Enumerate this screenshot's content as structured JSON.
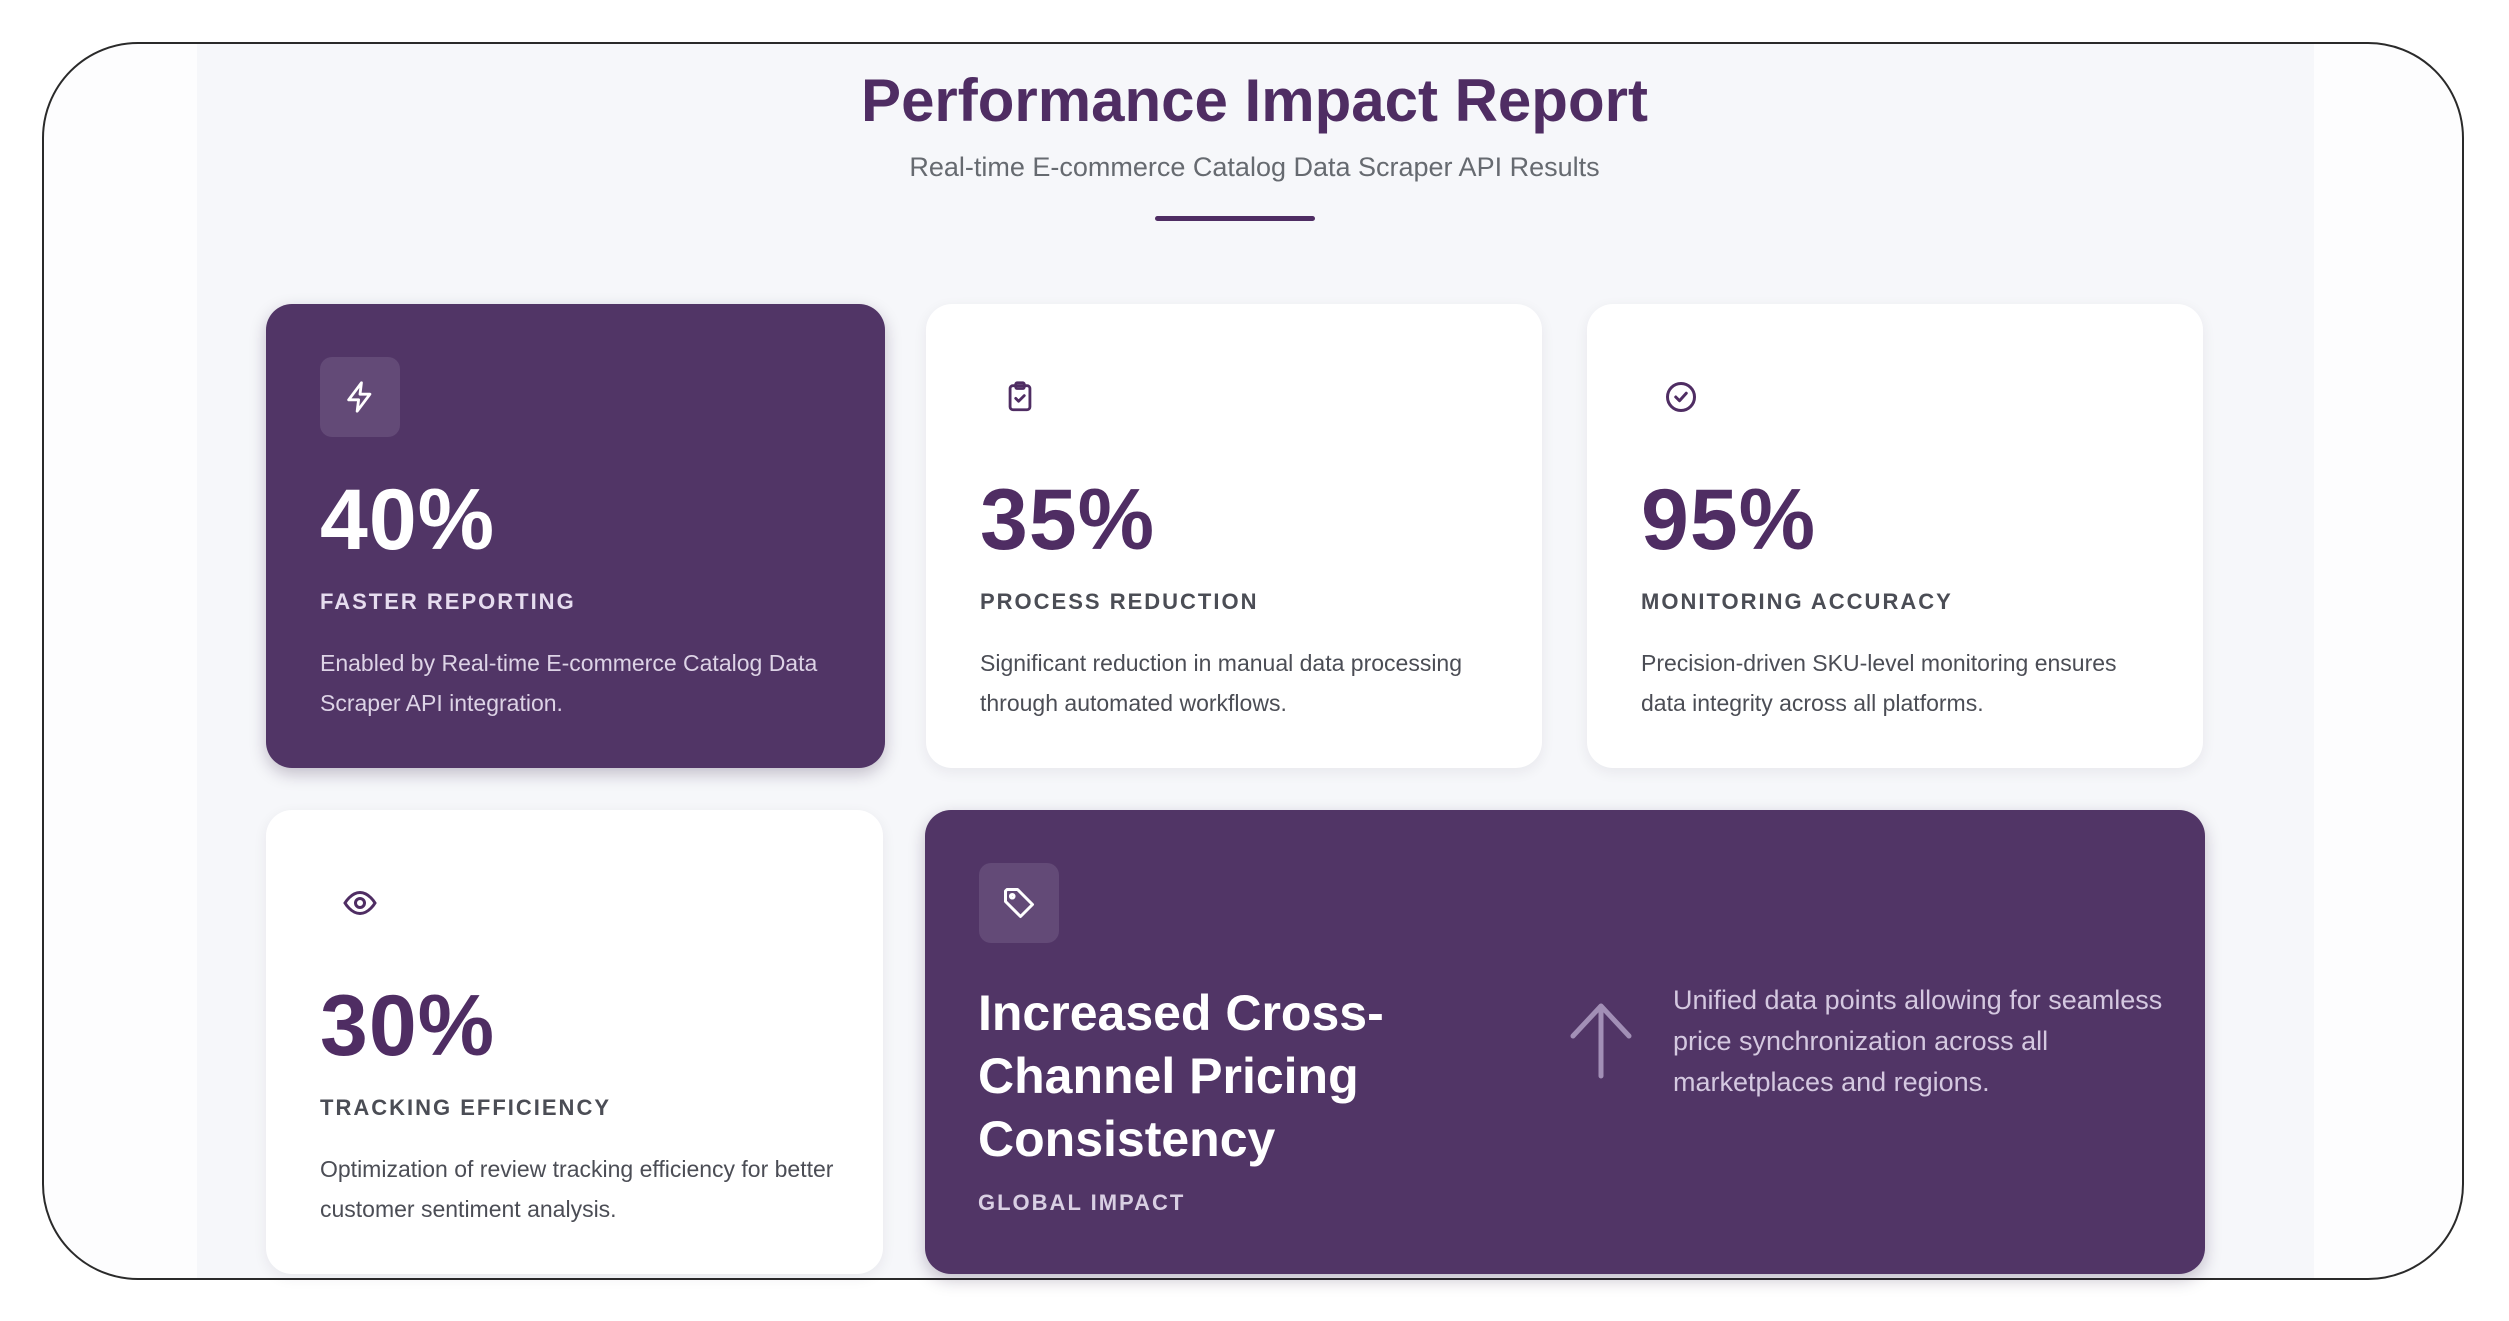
{
  "header": {
    "title": "Performance Impact Report",
    "subtitle": "Real-time E-commerce Catalog Data Scraper API Results"
  },
  "colors": {
    "brand_purple": "#513566",
    "title_purple": "#4f2d63",
    "background": "#f6f7fa"
  },
  "cards": [
    {
      "icon": "lightning-icon",
      "value": "40%",
      "label": "FASTER REPORTING",
      "description": "Enabled by Real-time E-commerce Catalog Data Scraper API integration."
    },
    {
      "icon": "clipboard-check-icon",
      "value": "35%",
      "label": "PROCESS REDUCTION",
      "description": "Significant reduction in manual data processing through automated workflows."
    },
    {
      "icon": "check-circle-icon",
      "value": "95%",
      "label": "MONITORING ACCURACY",
      "description": "Precision-driven SKU-level monitoring ensures data integrity across all platforms."
    },
    {
      "icon": "eye-icon",
      "value": "30%",
      "label": "TRACKING EFFICIENCY",
      "description": "Optimization of review tracking efficiency for better customer sentiment analysis."
    }
  ],
  "feature": {
    "icon": "tag-icon",
    "title": "Increased Cross-Channel Pricing Consistency",
    "label": "GLOBAL IMPACT",
    "arrow_icon": "arrow-up-icon",
    "description": "Unified data points allowing for seamless price synchronization across all marketplaces and regions."
  }
}
